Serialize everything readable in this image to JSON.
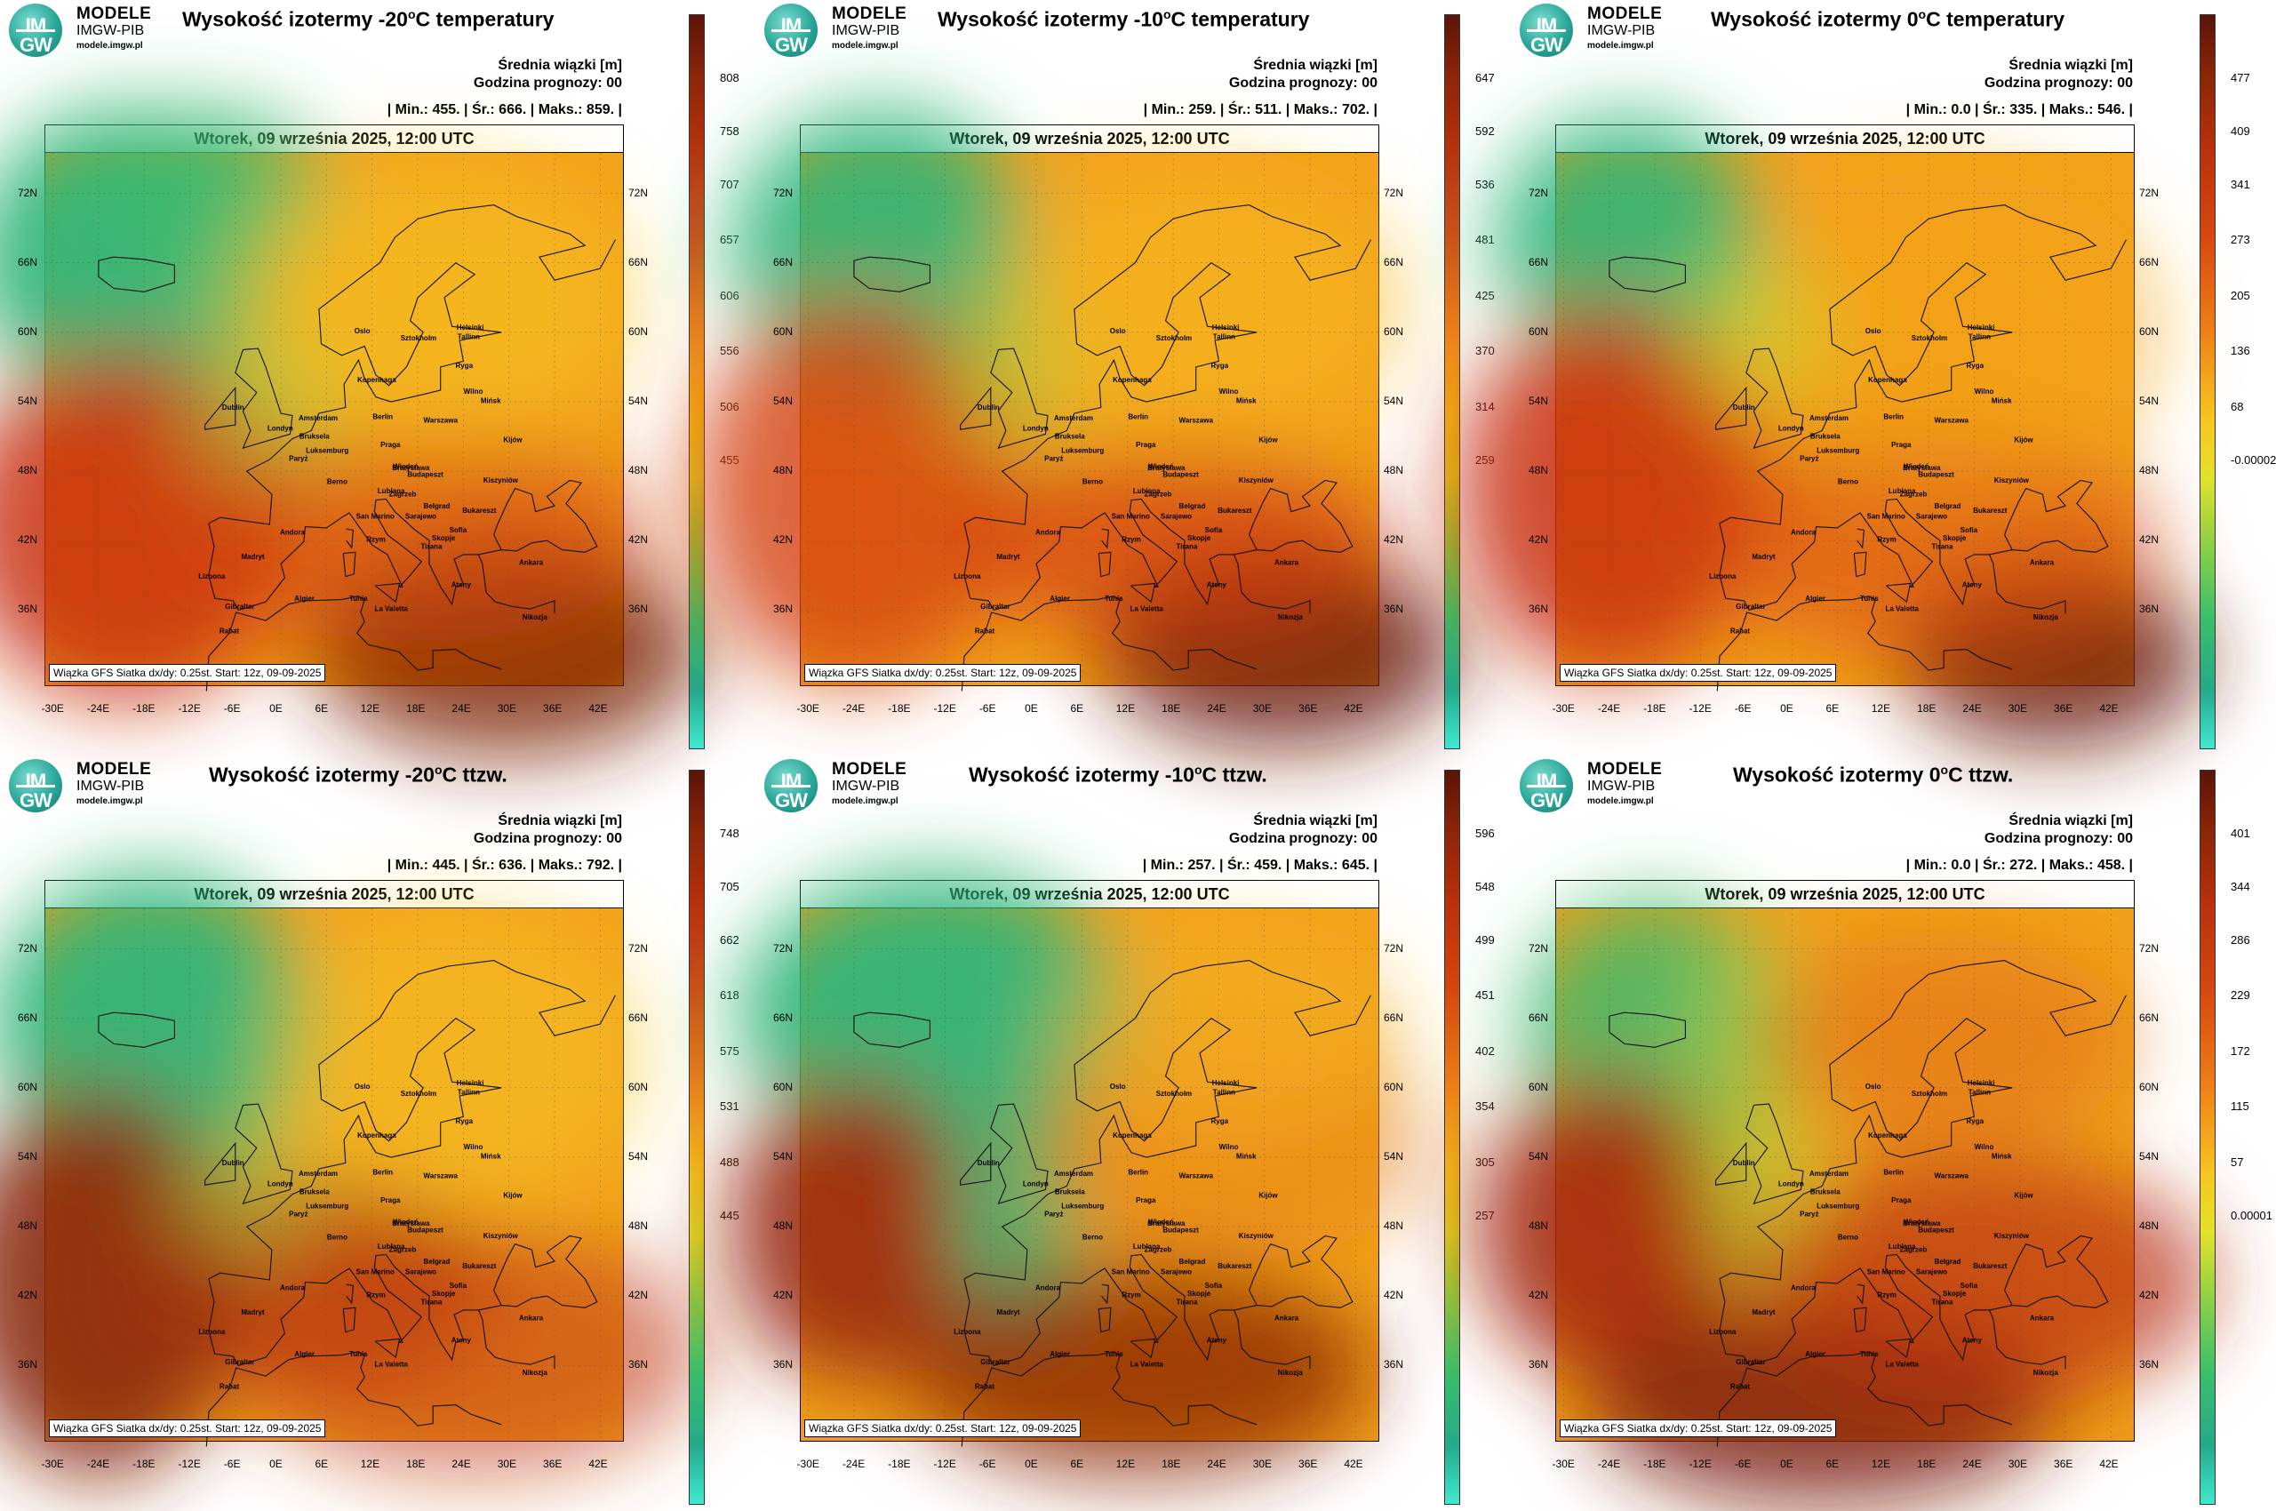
{
  "logo": {
    "l1": "MODELE",
    "l2": "IMGW-PIB",
    "l3": "modele.imgw.pl",
    "circle": "IM GW"
  },
  "common": {
    "mean_label": "Średnia wiązki [m]",
    "forecast_hour": "Godzina prognozy: 00",
    "date": "Wtorek, 09 września 2025, 12:00 UTC",
    "footer": "Wiązka GFS Siatka dx/dy: 0.25st. Start: 12z, 09-09-2025",
    "lat_labels": [
      "72N",
      "66N",
      "60N",
      "54N",
      "48N",
      "42N",
      "36N"
    ],
    "lon_labels": [
      "-30E",
      "-24E",
      "-18E",
      "-12E",
      "-6E",
      "0E",
      "6E",
      "12E",
      "18E",
      "24E",
      "30E",
      "36E",
      "42E"
    ],
    "cities": [
      {
        "name": "Oslo",
        "lon": 10.7,
        "lat": 59.9
      },
      {
        "name": "Sztokholm",
        "lon": 18.1,
        "lat": 59.3
      },
      {
        "name": "Helsinki",
        "lon": 24.9,
        "lat": 60.2
      },
      {
        "name": "Tallinn",
        "lon": 24.7,
        "lat": 59.4
      },
      {
        "name": "Ryga",
        "lon": 24.1,
        "lat": 56.9
      },
      {
        "name": "Kopenhaga",
        "lon": 12.6,
        "lat": 55.7
      },
      {
        "name": "Wilno",
        "lon": 25.3,
        "lat": 54.7
      },
      {
        "name": "Mińsk",
        "lon": 27.6,
        "lat": 53.9
      },
      {
        "name": "Dublin",
        "lon": -6.3,
        "lat": 53.3
      },
      {
        "name": "Amsterdam",
        "lon": 4.9,
        "lat": 52.4
      },
      {
        "name": "Berlin",
        "lon": 13.4,
        "lat": 52.5
      },
      {
        "name": "Warszawa",
        "lon": 21.0,
        "lat": 52.2
      },
      {
        "name": "Londyn",
        "lon": -0.1,
        "lat": 51.5
      },
      {
        "name": "Bruksela",
        "lon": 4.4,
        "lat": 50.8
      },
      {
        "name": "Praga",
        "lon": 14.4,
        "lat": 50.1
      },
      {
        "name": "Kijów",
        "lon": 30.5,
        "lat": 50.5
      },
      {
        "name": "Luksemburg",
        "lon": 6.1,
        "lat": 49.6
      },
      {
        "name": "Paryż",
        "lon": 2.3,
        "lat": 48.9
      },
      {
        "name": "Wiedeń",
        "lon": 16.4,
        "lat": 48.2
      },
      {
        "name": "Bratysława",
        "lon": 17.1,
        "lat": 48.1
      },
      {
        "name": "Budapeszt",
        "lon": 19.0,
        "lat": 47.5
      },
      {
        "name": "Kiszyniów",
        "lon": 28.9,
        "lat": 47.0
      },
      {
        "name": "Berno",
        "lon": 7.4,
        "lat": 46.9
      },
      {
        "name": "Lublana",
        "lon": 14.5,
        "lat": 46.1
      },
      {
        "name": "Zagrzeb",
        "lon": 16.0,
        "lat": 45.8
      },
      {
        "name": "Belgrad",
        "lon": 20.5,
        "lat": 44.8
      },
      {
        "name": "Bukareszt",
        "lon": 26.1,
        "lat": 44.4
      },
      {
        "name": "Sarajewo",
        "lon": 18.4,
        "lat": 43.9
      },
      {
        "name": "San Marino",
        "lon": 12.4,
        "lat": 43.9
      },
      {
        "name": "Andora",
        "lon": 1.5,
        "lat": 42.5
      },
      {
        "name": "Sofia",
        "lon": 23.3,
        "lat": 42.7
      },
      {
        "name": "Skopje",
        "lon": 21.4,
        "lat": 42.0
      },
      {
        "name": "Rzym",
        "lon": 12.5,
        "lat": 41.9
      },
      {
        "name": "Tirana",
        "lon": 19.8,
        "lat": 41.3
      },
      {
        "name": "Ankara",
        "lon": 32.9,
        "lat": 39.9
      },
      {
        "name": "Madryt",
        "lon": -3.7,
        "lat": 40.4
      },
      {
        "name": "Lizbona",
        "lon": -9.1,
        "lat": 38.7
      },
      {
        "name": "Ateny",
        "lon": 23.7,
        "lat": 38.0
      },
      {
        "name": "Gibraltar",
        "lon": -5.4,
        "lat": 36.1
      },
      {
        "name": "Algier",
        "lon": 3.1,
        "lat": 36.8
      },
      {
        "name": "Tunis",
        "lon": 10.2,
        "lat": 36.8
      },
      {
        "name": "La Valetta",
        "lon": 14.5,
        "lat": 35.9
      },
      {
        "name": "Nikozja",
        "lon": 33.4,
        "lat": 35.2
      },
      {
        "name": "Rabat",
        "lon": -6.8,
        "lat": 34.0
      }
    ]
  },
  "panels": [
    {
      "title_pre": "Wysokość izotermy -20",
      "title_sup": "o",
      "title_post": "C temperatury",
      "stats": "| Min.: 455. | Śr.: 666. | Maks.: 859. |",
      "cbar": [
        "808",
        "758",
        "707",
        "657",
        "606",
        "556",
        "506",
        "455"
      ],
      "cbar_top": "#5a1408",
      "cbar_bottom": "#40e8d0"
    },
    {
      "title_pre": "Wysokość izotermy -10",
      "title_sup": "o",
      "title_post": "C temperatury",
      "stats": "| Min.: 259. | Śr.: 511. | Maks.: 702. |",
      "cbar": [
        "647",
        "592",
        "536",
        "481",
        "425",
        "370",
        "314",
        "259"
      ],
      "cbar_top": "#5a1408",
      "cbar_bottom": "#40e8d0"
    },
    {
      "title_pre": "Wysokość izotermy 0",
      "title_sup": "o",
      "title_post": "C temperatury",
      "stats": "| Min.: 0.0 | Śr.: 335. | Maks.: 546. |",
      "cbar": [
        "477",
        "409",
        "341",
        "273",
        "205",
        "136",
        "68",
        "-0.00002"
      ],
      "cbar_top": "#5a1408",
      "cbar_bottom": "#40e8d0"
    },
    {
      "title_pre": "Wysokość izotermy -20",
      "title_sup": "o",
      "title_post": "C ttzw.",
      "stats": "| Min.: 445. | Śr.: 636. | Maks.: 792. |",
      "cbar": [
        "748",
        "705",
        "662",
        "618",
        "575",
        "531",
        "488",
        "445"
      ],
      "cbar_top": "#5a1408",
      "cbar_bottom": "#40e8d0"
    },
    {
      "title_pre": "Wysokość izotermy -10",
      "title_sup": "o",
      "title_post": "C ttzw.",
      "stats": "| Min.: 257. | Śr.: 459. | Maks.: 645. |",
      "cbar": [
        "596",
        "548",
        "499",
        "451",
        "402",
        "354",
        "305",
        "257"
      ],
      "cbar_top": "#5a1408",
      "cbar_bottom": "#40e8d0"
    },
    {
      "title_pre": "Wysokość izotermy 0",
      "title_sup": "o",
      "title_post": "C ttzw.",
      "stats": "| Min.: 0.0 | Śr.: 272. | Maks.: 458. |",
      "cbar": [
        "401",
        "344",
        "286",
        "229",
        "172",
        "115",
        "57",
        "0.00001"
      ],
      "cbar_top": "#5a1408",
      "cbar_bottom": "#40e8d0"
    }
  ]
}
